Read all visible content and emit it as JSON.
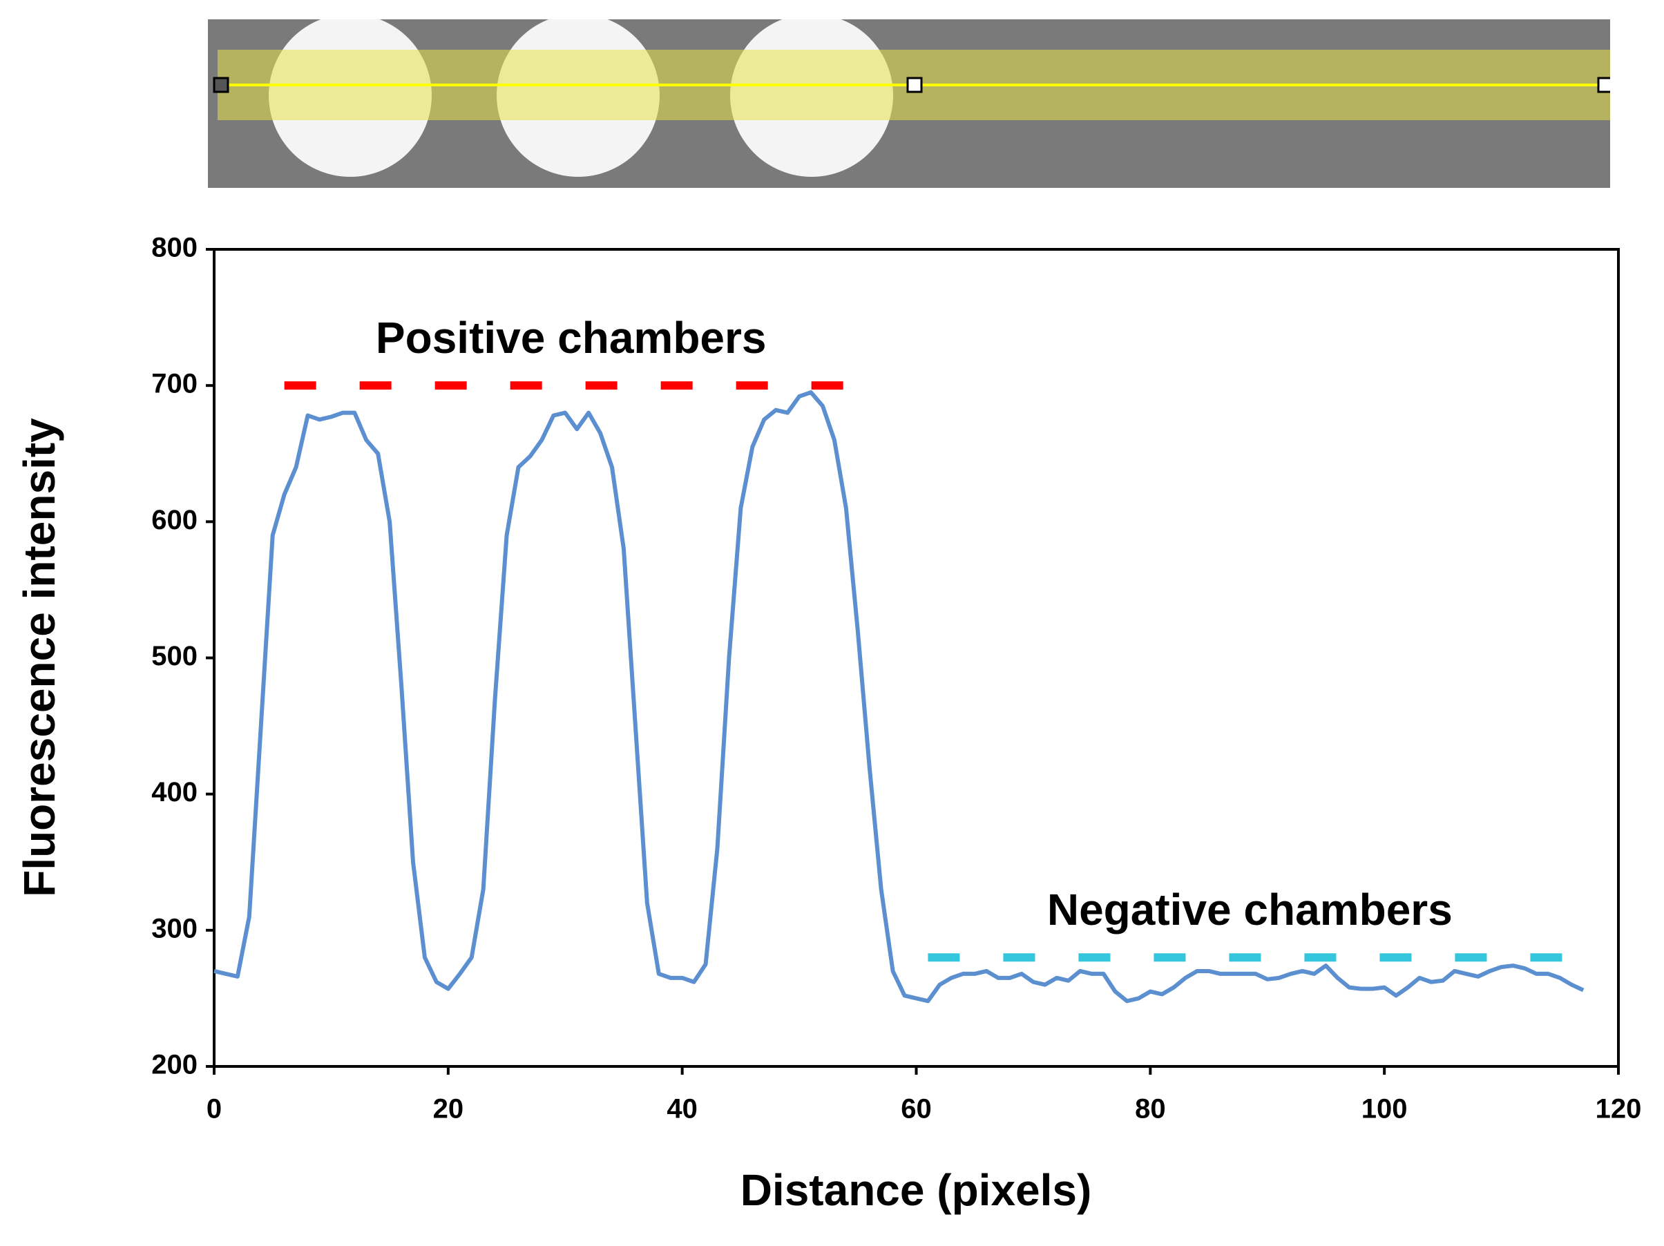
{
  "chart_data": {
    "type": "line",
    "x_label": "Distance (pixels)",
    "y_label": "Fluorescence intensity",
    "xlim": [
      0,
      120
    ],
    "xticks": [
      0,
      20,
      40,
      60,
      80,
      100,
      120
    ],
    "ylim": [
      200,
      800
    ],
    "yticks": [
      200,
      300,
      400,
      500,
      600,
      700,
      800
    ],
    "series": [
      {
        "color": "#5b8fd0",
        "x": [
          0,
          1,
          2,
          3,
          4,
          5,
          6,
          7,
          8,
          9,
          10,
          11,
          12,
          13,
          14,
          15,
          16,
          17,
          18,
          19,
          20,
          21,
          22,
          23,
          24,
          25,
          26,
          27,
          28,
          29,
          30,
          31,
          32,
          33,
          34,
          35,
          36,
          37,
          38,
          39,
          40,
          41,
          42,
          43,
          44,
          45,
          46,
          47,
          48,
          49,
          50,
          51,
          52,
          53,
          54,
          55,
          56,
          57,
          58,
          59,
          60,
          61,
          62,
          63,
          64,
          65,
          66,
          67,
          68,
          69,
          70,
          71,
          72,
          73,
          74,
          75,
          76,
          77,
          78,
          79,
          80,
          81,
          82,
          83,
          84,
          85,
          86,
          87,
          88,
          89,
          90,
          91,
          92,
          93,
          94,
          95,
          96,
          97,
          98,
          99,
          100,
          101,
          102,
          103,
          104,
          105,
          106,
          107,
          108,
          109,
          110,
          111,
          112,
          113,
          114,
          115,
          116,
          117
        ],
        "values": [
          270,
          268,
          266,
          310,
          450,
          590,
          620,
          640,
          678,
          675,
          677,
          680,
          680,
          660,
          650,
          600,
          480,
          350,
          280,
          262,
          257,
          268,
          280,
          330,
          470,
          590,
          640,
          648,
          660,
          678,
          680,
          668,
          680,
          665,
          640,
          580,
          450,
          320,
          268,
          265,
          265,
          262,
          275,
          360,
          500,
          610,
          655,
          675,
          682,
          680,
          692,
          695,
          685,
          660,
          610,
          520,
          420,
          330,
          270,
          252,
          250,
          248,
          260,
          265,
          268,
          268,
          270,
          265,
          265,
          268,
          262,
          260,
          265,
          263,
          270,
          268,
          268,
          255,
          248,
          250,
          255,
          253,
          258,
          265,
          270,
          270,
          268,
          268,
          268,
          268,
          264,
          265,
          268,
          270,
          268,
          274,
          265,
          258,
          257,
          257,
          258,
          252,
          258,
          265,
          262,
          263,
          270,
          268,
          266,
          270,
          273,
          274,
          272,
          268,
          268,
          265,
          260,
          256
        ]
      }
    ],
    "reference_lines": [
      {
        "label": "Positive chambers",
        "value": 700,
        "x": [
          6,
          55
        ],
        "color": "#ff0000"
      },
      {
        "label": "Negative chambers",
        "value": 280,
        "x": [
          61,
          116
        ],
        "color": "#33c6dc"
      }
    ]
  }
}
